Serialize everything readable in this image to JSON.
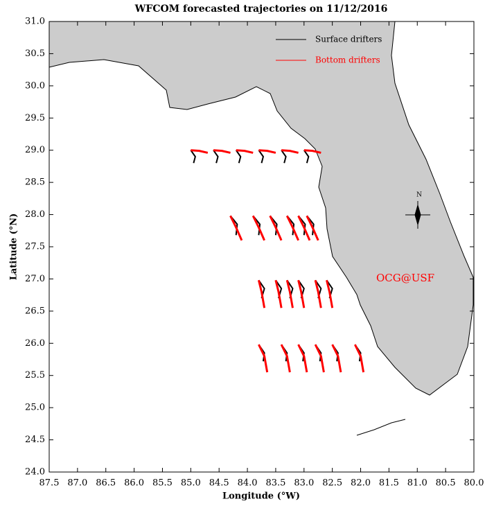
{
  "chart_data": {
    "type": "map",
    "title": "WFCOM forecasted trajectories on 11/12/2016",
    "x_label": "Longitude (°W)",
    "y_label": "Latitude (°N)",
    "annotation": "OCG@USF",
    "compass_label": "N",
    "xlim": [
      87.5,
      80.0
    ],
    "ylim": [
      24.0,
      31.0
    ],
    "xticks": [
      {
        "value": 87.5,
        "label": "87.5"
      },
      {
        "value": 87,
        "label": "87.0"
      },
      {
        "value": 86.5,
        "label": "86.5"
      },
      {
        "value": 86,
        "label": "86.0"
      },
      {
        "value": 85.5,
        "label": "85.5"
      },
      {
        "value": 85,
        "label": "85.0"
      },
      {
        "value": 84.5,
        "label": "84.5"
      },
      {
        "value": 84,
        "label": "84.0"
      },
      {
        "value": 83.5,
        "label": "83.5"
      },
      {
        "value": 83,
        "label": "83.0"
      },
      {
        "value": 82.5,
        "label": "82.5"
      },
      {
        "value": 82,
        "label": "82.0"
      },
      {
        "value": 81.5,
        "label": "81.5"
      },
      {
        "value": 81,
        "label": "81.0"
      },
      {
        "value": 80.5,
        "label": "80.5"
      },
      {
        "value": 80,
        "label": "80.0"
      }
    ],
    "yticks": [
      {
        "value": 24,
        "label": "24.0"
      },
      {
        "value": 24.5,
        "label": "24.5"
      },
      {
        "value": 25,
        "label": "25.0"
      },
      {
        "value": 25.5,
        "label": "25.5"
      },
      {
        "value": 26,
        "label": "26.0"
      },
      {
        "value": 26.5,
        "label": "26.5"
      },
      {
        "value": 27,
        "label": "27.0"
      },
      {
        "value": 27.5,
        "label": "27.5"
      },
      {
        "value": 28,
        "label": "28.0"
      },
      {
        "value": 28.5,
        "label": "28.5"
      },
      {
        "value": 29,
        "label": "29.0"
      },
      {
        "value": 29.5,
        "label": "29.5"
      },
      {
        "value": 30,
        "label": "30.0"
      },
      {
        "value": 30.5,
        "label": "30.5"
      },
      {
        "value": 31,
        "label": "31.0"
      }
    ],
    "series": [
      {
        "name": "Surface drifters",
        "color": "#000000",
        "tracks": [
          {
            "x": [
              85.0,
              84.92,
              84.95
            ],
            "y": [
              29.0,
              28.9,
              28.8
            ]
          },
          {
            "x": [
              84.6,
              84.52,
              84.55
            ],
            "y": [
              29.0,
              28.9,
              28.8
            ]
          },
          {
            "x": [
              84.2,
              84.12,
              84.15
            ],
            "y": [
              29.0,
              28.9,
              28.8
            ]
          },
          {
            "x": [
              83.8,
              83.72,
              83.75
            ],
            "y": [
              29.0,
              28.9,
              28.8
            ]
          },
          {
            "x": [
              83.4,
              83.32,
              83.35
            ],
            "y": [
              29.0,
              28.9,
              28.8
            ]
          },
          {
            "x": [
              83.0,
              82.92,
              82.95
            ],
            "y": [
              29.0,
              28.9,
              28.8
            ]
          },
          {
            "x": [
              84.3,
              84.18,
              84.2
            ],
            "y": [
              27.98,
              27.85,
              27.68
            ]
          },
          {
            "x": [
              83.9,
              83.78,
              83.8
            ],
            "y": [
              27.98,
              27.85,
              27.68
            ]
          },
          {
            "x": [
              83.6,
              83.48,
              83.5
            ],
            "y": [
              27.98,
              27.85,
              27.68
            ]
          },
          {
            "x": [
              83.3,
              83.18,
              83.2
            ],
            "y": [
              27.98,
              27.85,
              27.68
            ]
          },
          {
            "x": [
              83.1,
              82.98,
              83.0
            ],
            "y": [
              27.98,
              27.85,
              27.68
            ]
          },
          {
            "x": [
              82.95,
              82.83,
              82.85
            ],
            "y": [
              27.98,
              27.85,
              27.68
            ]
          },
          {
            "x": [
              83.8,
              83.7,
              83.75
            ],
            "y": [
              26.98,
              26.85,
              26.7
            ]
          },
          {
            "x": [
              83.5,
              83.4,
              83.45
            ],
            "y": [
              26.98,
              26.85,
              26.7
            ]
          },
          {
            "x": [
              83.3,
              83.2,
              83.25
            ],
            "y": [
              26.98,
              26.85,
              26.7
            ]
          },
          {
            "x": [
              83.1,
              83.0,
              83.05
            ],
            "y": [
              26.98,
              26.85,
              26.7
            ]
          },
          {
            "x": [
              82.8,
              82.7,
              82.75
            ],
            "y": [
              26.98,
              26.85,
              26.7
            ]
          },
          {
            "x": [
              82.6,
              82.5,
              82.55
            ],
            "y": [
              26.98,
              26.85,
              26.7
            ]
          },
          {
            "x": [
              83.8,
              83.7,
              83.72
            ],
            "y": [
              25.98,
              25.85,
              25.72
            ]
          },
          {
            "x": [
              83.4,
              83.3,
              83.32
            ],
            "y": [
              25.98,
              25.85,
              25.72
            ]
          },
          {
            "x": [
              83.1,
              83.0,
              83.02
            ],
            "y": [
              25.98,
              25.85,
              25.72
            ]
          },
          {
            "x": [
              82.8,
              82.7,
              82.72
            ],
            "y": [
              25.98,
              25.85,
              25.72
            ]
          },
          {
            "x": [
              82.5,
              82.4,
              82.42
            ],
            "y": [
              25.98,
              25.85,
              25.72
            ]
          },
          {
            "x": [
              82.1,
              82.0,
              82.02
            ],
            "y": [
              25.98,
              25.85,
              25.72
            ]
          }
        ]
      },
      {
        "name": "Bottom drifters",
        "color": "#ff0000",
        "tracks": [
          {
            "x": [
              85.0,
              84.85,
              84.7
            ],
            "y": [
              29.0,
              28.99,
              28.96
            ]
          },
          {
            "x": [
              84.6,
              84.45,
              84.3
            ],
            "y": [
              29.0,
              28.99,
              28.96
            ]
          },
          {
            "x": [
              84.2,
              84.05,
              83.9
            ],
            "y": [
              29.0,
              28.99,
              28.96
            ]
          },
          {
            "x": [
              83.8,
              83.65,
              83.5
            ],
            "y": [
              29.0,
              28.99,
              28.96
            ]
          },
          {
            "x": [
              83.4,
              83.25,
              83.1
            ],
            "y": [
              29.0,
              28.99,
              28.96
            ]
          },
          {
            "x": [
              83.0,
              82.85,
              82.7
            ],
            "y": [
              29.0,
              28.99,
              28.96
            ]
          },
          {
            "x": [
              84.3,
              84.2,
              84.1
            ],
            "y": [
              27.98,
              27.8,
              27.6
            ]
          },
          {
            "x": [
              83.9,
              83.8,
              83.7
            ],
            "y": [
              27.98,
              27.8,
              27.6
            ]
          },
          {
            "x": [
              83.6,
              83.5,
              83.4
            ],
            "y": [
              27.98,
              27.8,
              27.6
            ]
          },
          {
            "x": [
              83.3,
              83.2,
              83.1
            ],
            "y": [
              27.98,
              27.8,
              27.6
            ]
          },
          {
            "x": [
              83.1,
              83.0,
              82.9
            ],
            "y": [
              27.98,
              27.8,
              27.6
            ]
          },
          {
            "x": [
              82.95,
              82.85,
              82.75
            ],
            "y": [
              27.98,
              27.8,
              27.6
            ]
          },
          {
            "x": [
              83.8,
              83.75,
              83.7
            ],
            "y": [
              26.98,
              26.8,
              26.55
            ]
          },
          {
            "x": [
              83.5,
              83.45,
              83.4
            ],
            "y": [
              26.98,
              26.8,
              26.55
            ]
          },
          {
            "x": [
              83.3,
              83.25,
              83.2
            ],
            "y": [
              26.98,
              26.8,
              26.55
            ]
          },
          {
            "x": [
              83.1,
              83.05,
              83.0
            ],
            "y": [
              26.98,
              26.8,
              26.55
            ]
          },
          {
            "x": [
              82.8,
              82.75,
              82.7
            ],
            "y": [
              26.98,
              26.8,
              26.55
            ]
          },
          {
            "x": [
              82.6,
              82.55,
              82.5
            ],
            "y": [
              26.98,
              26.8,
              26.55
            ]
          },
          {
            "x": [
              83.8,
              83.7,
              83.65
            ],
            "y": [
              25.98,
              25.8,
              25.55
            ]
          },
          {
            "x": [
              83.4,
              83.3,
              83.25
            ],
            "y": [
              25.98,
              25.8,
              25.55
            ]
          },
          {
            "x": [
              83.1,
              83.0,
              82.95
            ],
            "y": [
              25.98,
              25.8,
              25.55
            ]
          },
          {
            "x": [
              82.8,
              82.7,
              82.65
            ],
            "y": [
              25.98,
              25.8,
              25.55
            ]
          },
          {
            "x": [
              82.5,
              82.4,
              82.35
            ],
            "y": [
              25.98,
              25.8,
              25.55
            ]
          },
          {
            "x": [
              82.1,
              82.0,
              81.95
            ],
            "y": [
              25.98,
              25.8,
              25.55
            ]
          }
        ]
      }
    ]
  }
}
